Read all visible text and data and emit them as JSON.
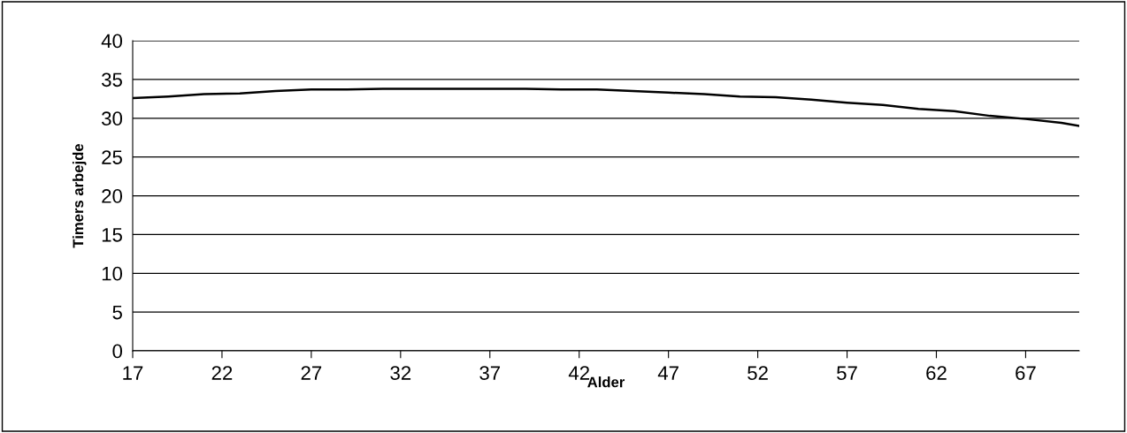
{
  "chart_data": {
    "type": "line",
    "xlabel": "Alder",
    "ylabel": "Timers arbejde",
    "x": [
      17,
      19,
      21,
      23,
      25,
      27,
      29,
      31,
      33,
      35,
      37,
      39,
      41,
      43,
      45,
      47,
      49,
      51,
      53,
      55,
      57,
      59,
      61,
      63,
      65,
      67,
      69,
      70
    ],
    "series": [
      {
        "color": "#000000",
        "values": [
          32.6,
          32.8,
          33.1,
          33.2,
          33.5,
          33.7,
          33.7,
          33.8,
          33.8,
          33.8,
          33.8,
          33.8,
          33.7,
          33.7,
          33.5,
          33.3,
          33.1,
          32.8,
          32.7,
          32.4,
          32.0,
          31.7,
          31.2,
          30.9,
          30.3,
          29.9,
          29.4,
          29.0
        ]
      }
    ],
    "xlim": [
      17,
      70
    ],
    "xticks": [
      17,
      22,
      27,
      32,
      37,
      42,
      47,
      52,
      57,
      62,
      67
    ],
    "ylim": [
      0,
      40
    ],
    "yticks": [
      0,
      5,
      10,
      15,
      20,
      25,
      30,
      35,
      40
    ],
    "grid": "y",
    "legend": false,
    "marker": "none",
    "line_style": "solid"
  }
}
